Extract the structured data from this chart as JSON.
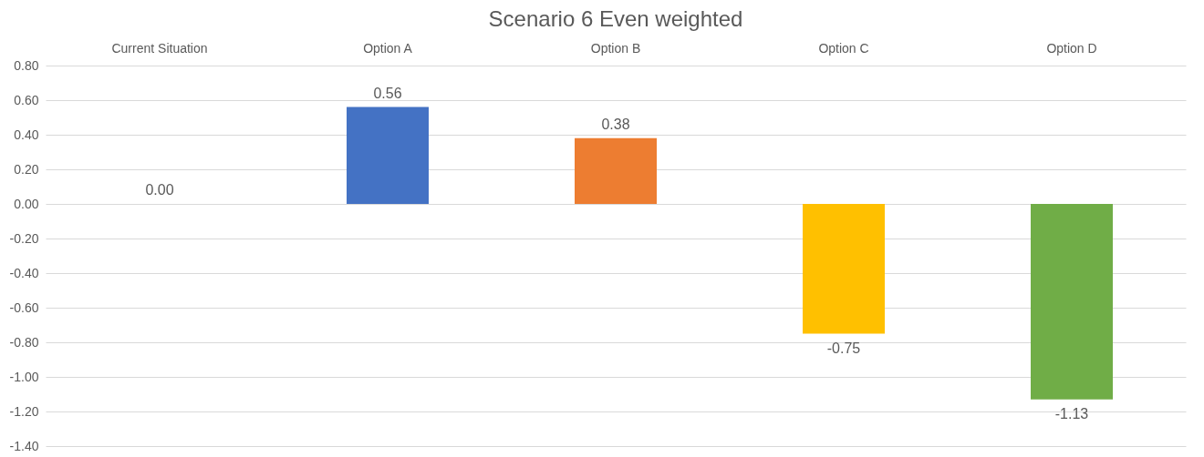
{
  "chart_data": {
    "type": "bar",
    "title": "Scenario 6 Even weighted",
    "categories": [
      "Current Situation",
      "Option A",
      "Option B",
      "Option C",
      "Option D"
    ],
    "values": [
      0.0,
      0.56,
      0.38,
      -0.75,
      -1.13
    ],
    "colors": [
      "#4472c4",
      "#4472c4",
      "#ed7d31",
      "#ffc000",
      "#70ad47"
    ],
    "value_labels": [
      "0.00",
      "0.56",
      "0.38",
      "-0.75",
      "-1.13"
    ],
    "ylim": [
      -1.4,
      0.8
    ],
    "yticks": [
      {
        "value": -1.4,
        "label": "-1.40"
      },
      {
        "value": -1.2,
        "label": "-1.20"
      },
      {
        "value": -1.0,
        "label": "-1.00"
      },
      {
        "value": -0.8,
        "label": "-0.80"
      },
      {
        "value": -0.6,
        "label": "-0.60"
      },
      {
        "value": -0.4,
        "label": "-0.40"
      },
      {
        "value": -0.2,
        "label": "-0.20"
      },
      {
        "value": 0,
        "label": "0.00"
      },
      {
        "value": 0.2,
        "label": "0.20"
      },
      {
        "value": 0.4,
        "label": "0.40"
      },
      {
        "value": 0.6,
        "label": "0.60"
      },
      {
        "value": 0.8,
        "label": "0.80"
      }
    ],
    "grid": "y"
  }
}
